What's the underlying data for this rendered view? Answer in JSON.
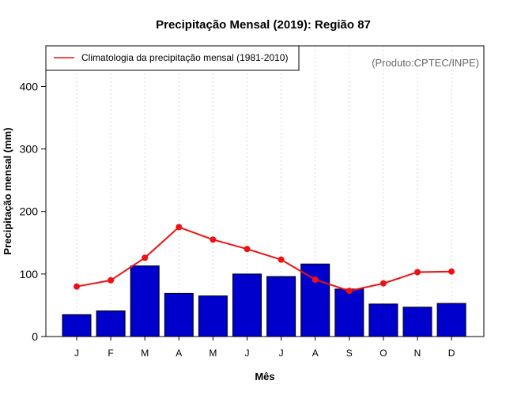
{
  "chart_data": {
    "type": "bar",
    "title": "Precipitação Mensal (2019): Região 87",
    "xlabel": "Mês",
    "ylabel": "Precipitação mensal (mm)",
    "ylim": [
      0,
      465
    ],
    "yticks": [
      0,
      100,
      200,
      300,
      400
    ],
    "categories": [
      "J",
      "F",
      "M",
      "A",
      "M",
      "J",
      "J",
      "A",
      "S",
      "O",
      "N",
      "D"
    ],
    "series": [
      {
        "name": "Precipitação mensal 2019",
        "type": "bar",
        "color": "#0000CD",
        "values": [
          35,
          41,
          113,
          69,
          65,
          100,
          96,
          116,
          76,
          52,
          47,
          53
        ]
      },
      {
        "name": "Climatologia da precipitação mensal (1981-2010)",
        "type": "line",
        "color": "#EE1111",
        "values": [
          80,
          90,
          126,
          175,
          155,
          140,
          123,
          91,
          73,
          85,
          103,
          104
        ]
      }
    ],
    "legend": {
      "position": "top-left",
      "entries": [
        "Climatologia da precipitação mensal (1981-2010)"
      ]
    },
    "annotation": "(Produto:CPTEC/INPE)",
    "grid": "vertical dotted"
  }
}
